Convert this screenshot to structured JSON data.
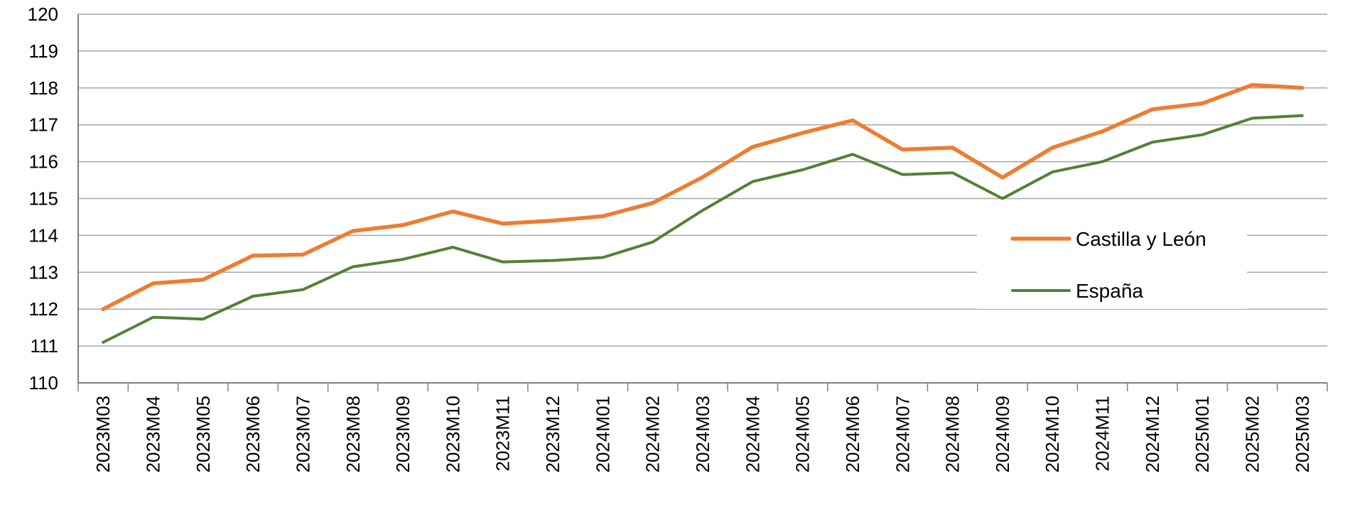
{
  "chart_data": {
    "type": "line",
    "title": "",
    "xlabel": "",
    "ylabel": "",
    "ylim": [
      110,
      120
    ],
    "yticks": [
      "110",
      "111",
      "112",
      "113",
      "114",
      "115",
      "116",
      "117",
      "118",
      "119",
      "120"
    ],
    "grid": "horizontal",
    "legend_position": "right",
    "categories": [
      "2023M03",
      "2023M04",
      "2023M05",
      "2023M06",
      "2023M07",
      "2023M08",
      "2023M09",
      "2023M10",
      "2023M11",
      "2023M12",
      "2024M01",
      "2024M02",
      "2024M03",
      "2024M04",
      "2024M05",
      "2024M06",
      "2024M07",
      "2024M08",
      "2024M09",
      "2024M10",
      "2024M11",
      "2024M12",
      "2025M01",
      "2025M02",
      "2025M03"
    ],
    "series": [
      {
        "name": "Castilla y León",
        "color": "#ED7D31",
        "values": [
          112.0,
          112.7,
          112.8,
          113.45,
          113.48,
          114.12,
          114.28,
          114.65,
          114.32,
          114.4,
          114.52,
          114.88,
          115.58,
          116.4,
          116.78,
          117.12,
          116.33,
          116.38,
          115.57,
          116.38,
          116.82,
          117.42,
          117.58,
          118.08,
          118.0
        ]
      },
      {
        "name": "España",
        "color": "#538135",
        "values": [
          111.1,
          111.78,
          111.73,
          112.35,
          112.53,
          113.15,
          113.35,
          113.68,
          113.28,
          113.32,
          113.4,
          113.82,
          114.68,
          115.46,
          115.78,
          116.2,
          115.65,
          115.7,
          115.0,
          115.72,
          116.0,
          116.53,
          116.73,
          117.18,
          117.25
        ]
      }
    ]
  }
}
